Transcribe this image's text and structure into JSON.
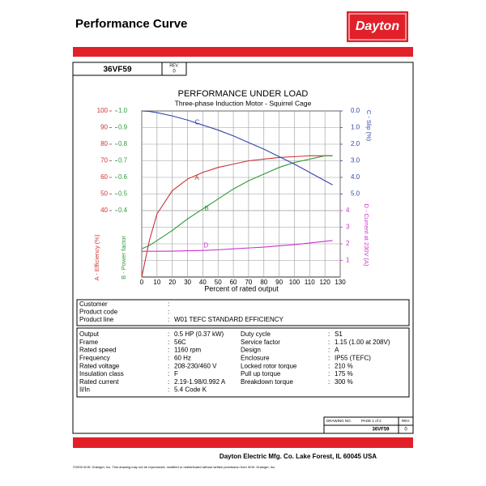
{
  "header": {
    "title": "Performance Curve",
    "logo": "Dayton"
  },
  "document": {
    "model": "36VF59",
    "rev_label": "REV.",
    "rev": "0"
  },
  "chart_data": {
    "type": "line",
    "title": "PERFORMANCE UNDER LOAD",
    "subtitle": "Three-phase Induction Motor - Squirrel Cage",
    "xlabel": "Percent of rated output",
    "xlim": [
      0,
      130
    ],
    "xticks": [
      0,
      10,
      20,
      30,
      40,
      50,
      60,
      70,
      80,
      90,
      100,
      110,
      120,
      130
    ],
    "grid": true,
    "x": [
      0,
      5,
      10,
      20,
      30,
      40,
      50,
      60,
      70,
      80,
      90,
      100,
      110,
      120,
      125
    ],
    "y_axes": [
      {
        "label": "A - Efficiency (%)",
        "color": "#cc3333",
        "side": "left",
        "lim": [
          0,
          100
        ],
        "ticks": [
          40,
          50,
          60,
          70,
          80,
          90,
          100
        ]
      },
      {
        "label": "B - Power factor",
        "color": "#2e9a3a",
        "side": "left",
        "lim": [
          0,
          1
        ],
        "ticks": [
          0.4,
          0.5,
          0.6,
          0.7,
          0.8,
          0.9,
          {
            "value": 1,
            "label": "1.0"
          }
        ]
      },
      {
        "label": "C - Slip (%)",
        "color": "#3344aa",
        "side": "right",
        "lim": [
          10,
          0
        ],
        "ticks": [
          {
            "value": 0,
            "label": "0.0"
          },
          {
            "value": 1,
            "label": "1.0"
          },
          {
            "value": 2,
            "label": "2.0"
          },
          {
            "value": 3,
            "label": "3.0"
          },
          {
            "value": 4,
            "label": "4.0"
          },
          {
            "value": 5,
            "label": "5.0"
          }
        ]
      },
      {
        "label": "D - Current at 230V (A)",
        "color": "#cc33cc",
        "side": "right",
        "lim": [
          0,
          10
        ],
        "ticks": [
          1,
          2,
          3,
          4
        ]
      }
    ],
    "series": [
      {
        "name": "A",
        "axis": 0,
        "color": "#cc3333",
        "values": [
          0,
          22,
          38,
          52,
          59,
          63,
          66,
          68,
          70,
          71,
          72,
          72.5,
          73,
          73,
          73
        ]
      },
      {
        "name": "B",
        "axis": 1,
        "color": "#2e9a3a",
        "values": [
          0.17,
          0.19,
          0.22,
          0.28,
          0.35,
          0.41,
          0.47,
          0.53,
          0.58,
          0.62,
          0.66,
          0.69,
          0.71,
          0.73,
          0.73
        ]
      },
      {
        "name": "C",
        "axis": 2,
        "color": "#3344aa",
        "values": [
          0,
          0.03,
          0.1,
          0.3,
          0.55,
          0.85,
          1.15,
          1.5,
          1.9,
          2.3,
          2.75,
          3.2,
          3.7,
          4.2,
          4.45
        ]
      },
      {
        "name": "D",
        "axis": 3,
        "color": "#cc33cc",
        "values": [
          1.55,
          1.55,
          1.55,
          1.56,
          1.58,
          1.6,
          1.64,
          1.7,
          1.75,
          1.8,
          1.88,
          1.95,
          2.05,
          2.15,
          2.2
        ]
      }
    ]
  },
  "separator": ":",
  "customer": {
    "rows": [
      {
        "label": "Customer"
      },
      {
        "label": "Product code"
      },
      {
        "label": "Product line",
        "value": "W01 TEFC STANDARD  EFFICIENCY"
      }
    ]
  },
  "specs": {
    "rows": [
      [
        "Output",
        "0.5 HP (0.37 kW)",
        "Duty cycle",
        "S1"
      ],
      [
        "Frame",
        "56C",
        "Service factor",
        "1.15  (1.00 at 208V)"
      ],
      [
        "Rated speed",
        "1160 rpm",
        "Design",
        "A"
      ],
      [
        "Frequency",
        "60 Hz",
        "Enclosure",
        "IP55 (TEFC)"
      ],
      [
        "Rated voltage",
        "208-230/460 V",
        "Locked rotor torque",
        "210 %"
      ],
      [
        "Insulation class",
        "F",
        "Pull up torque",
        "175 %"
      ],
      [
        "Rated current",
        "2.19-1.98/0.992 A",
        "Breakdown torque",
        "300 %"
      ],
      [
        "Il/In",
        "5.4   Code K"
      ]
    ]
  },
  "title_block": {
    "drawing_no_label": "DRAWING NO.",
    "page": "PAGE  1  of  2",
    "drawing_no": "36VF59",
    "rev_label": "REV.",
    "rev": "0"
  },
  "footer": {
    "company": "Dayton Electric Mfg. Co.  Lake Forest, IL  60045  USA",
    "copyright": "©2005 W.W. Grainger, Inc.   This drawing may not be reproduced, modified or redistributed without written permission from W.W. Grainger, Inc."
  }
}
